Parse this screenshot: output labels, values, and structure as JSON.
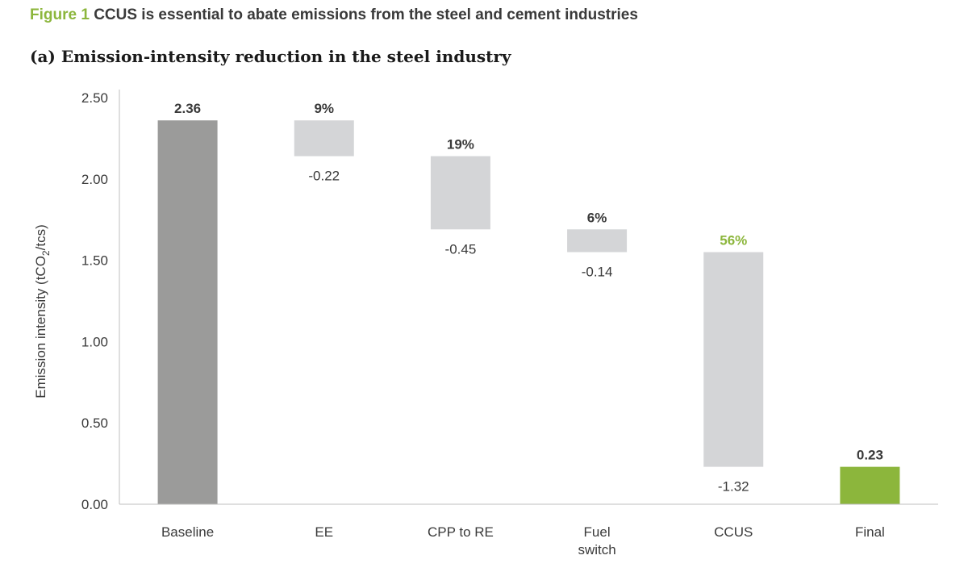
{
  "figure": {
    "label": "Figure 1",
    "title": "CCUS is essential to abate emissions from the steel and cement industries"
  },
  "chart_data": {
    "type": "bar",
    "subtitle": "(a) Emission-intensity reduction in the steel industry",
    "ylabel_prefix": "Emission intensity (tCO",
    "ylabel_sub": "2",
    "ylabel_suffix": "/tcs)",
    "ylim": [
      0,
      2.5
    ],
    "yticks": [
      "0.00",
      "0.50",
      "1.00",
      "1.50",
      "2.00",
      "2.50"
    ],
    "categories": [
      [
        "Baseline"
      ],
      [
        "EE"
      ],
      [
        "CPP to RE"
      ],
      [
        "Fuel",
        "switch"
      ],
      [
        "CCUS"
      ],
      [
        "Final"
      ]
    ],
    "bars": [
      {
        "kind": "total",
        "start": 0,
        "end": 2.36,
        "top_label": "2.36",
        "color": "#9b9b9a",
        "top_label_color": "#3a3a3a"
      },
      {
        "kind": "step",
        "start": 2.36,
        "end": 2.14,
        "top_label": "9%",
        "bottom_label": "-0.22",
        "color": "#d4d5d7",
        "top_label_color": "#3a3a3a"
      },
      {
        "kind": "step",
        "start": 2.14,
        "end": 1.69,
        "top_label": "19%",
        "bottom_label": "-0.45",
        "color": "#d4d5d7",
        "top_label_color": "#3a3a3a"
      },
      {
        "kind": "step",
        "start": 1.69,
        "end": 1.55,
        "top_label": "6%",
        "bottom_label": "-0.14",
        "color": "#d4d5d7",
        "top_label_color": "#3a3a3a"
      },
      {
        "kind": "step",
        "start": 1.55,
        "end": 0.23,
        "top_label": "56%",
        "bottom_label": "-1.32",
        "color": "#d4d5d7",
        "top_label_color": "#8cb63c"
      },
      {
        "kind": "total",
        "start": 0,
        "end": 0.23,
        "top_label": "0.23",
        "color": "#8cb63c",
        "top_label_color": "#3a3a3a"
      }
    ],
    "grid": false,
    "legend": "none"
  }
}
